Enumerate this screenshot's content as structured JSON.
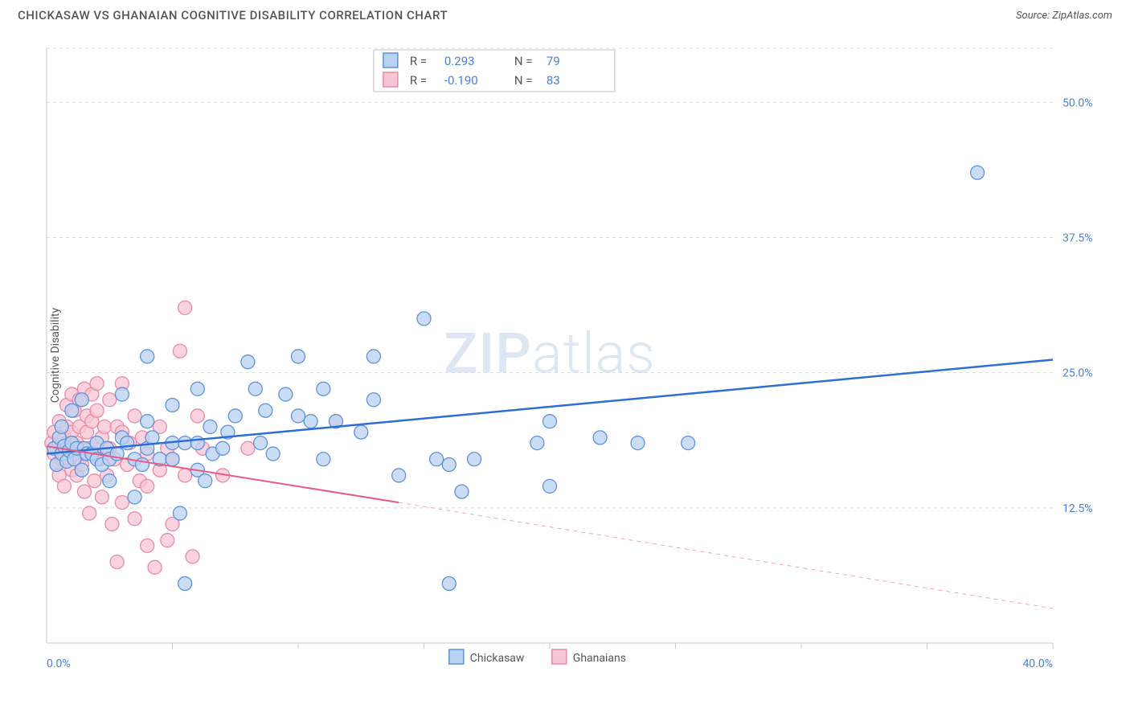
{
  "header": {
    "title": "CHICKASAW VS GHANAIAN COGNITIVE DISABILITY CORRELATION CHART",
    "source": "Source: ZipAtlas.com"
  },
  "chart": {
    "type": "scatter",
    "ylabel": "Cognitive Disability",
    "background_color": "#ffffff",
    "grid_color": "#d8d8d8",
    "axis_color": "#c8c8c8",
    "tick_label_color": "#4a80d6",
    "xlim": [
      0,
      40
    ],
    "ylim": [
      0,
      55
    ],
    "x_ticks": [
      5,
      10,
      15,
      20,
      25,
      30,
      35,
      40
    ],
    "x_corner_label": "0.0%",
    "x_end_label": "40.0%",
    "y_ticks": [
      {
        "v": 12.5,
        "label": "12.5%"
      },
      {
        "v": 25.0,
        "label": "25.0%"
      },
      {
        "v": 37.5,
        "label": "37.5%"
      },
      {
        "v": 50.0,
        "label": "50.0%"
      }
    ],
    "watermark": {
      "heavy": "ZIP",
      "light": "atlas",
      "color": "#cdd9ea"
    },
    "legend_top": {
      "rows": [
        {
          "swatch": "blue",
          "r_label": "R =",
          "r": "0.293",
          "n_label": "N =",
          "n": "79"
        },
        {
          "swatch": "pink",
          "r_label": "R =",
          "r": "-0.190",
          "n_label": "N =",
          "n": "83"
        }
      ],
      "r_color": "#4a80d6",
      "n_color": "#4a80d6",
      "label_color": "#555555",
      "box_stroke": "#bfbfbf"
    },
    "legend_bottom": {
      "items": [
        {
          "swatch": "blue",
          "label": "Chickasaw"
        },
        {
          "swatch": "pink",
          "label": "Ghanaians"
        }
      ]
    },
    "series": {
      "blue": {
        "color_fill": "#b9d2f2",
        "color_stroke": "#5e93d9",
        "marker_radius": 8.5,
        "trend": {
          "x1": 0,
          "y1": 17.5,
          "x2": 40,
          "y2": 26.2,
          "color": "#2d6fd2",
          "width": 2.5
        },
        "points": [
          [
            0.3,
            18.0
          ],
          [
            0.4,
            16.5
          ],
          [
            0.5,
            19.0
          ],
          [
            0.6,
            17.5
          ],
          [
            0.7,
            18.2
          ],
          [
            0.8,
            16.8
          ],
          [
            0.9,
            17.8
          ],
          [
            0.6,
            20.0
          ],
          [
            1.0,
            18.5
          ],
          [
            1.0,
            21.5
          ],
          [
            1.1,
            17.0
          ],
          [
            1.2,
            18.0
          ],
          [
            1.4,
            16.0
          ],
          [
            1.5,
            18.0
          ],
          [
            1.6,
            17.5
          ],
          [
            1.4,
            22.5
          ],
          [
            1.8,
            17.5
          ],
          [
            2.0,
            17.0
          ],
          [
            2.0,
            18.5
          ],
          [
            2.2,
            16.5
          ],
          [
            2.4,
            18.0
          ],
          [
            2.5,
            17.0
          ],
          [
            2.5,
            15.0
          ],
          [
            2.8,
            17.5
          ],
          [
            3.0,
            19.0
          ],
          [
            3.0,
            23.0
          ],
          [
            3.2,
            18.5
          ],
          [
            3.5,
            13.5
          ],
          [
            3.5,
            17.0
          ],
          [
            3.8,
            16.5
          ],
          [
            4.0,
            20.5
          ],
          [
            4.0,
            18.0
          ],
          [
            4.0,
            26.5
          ],
          [
            4.2,
            19.0
          ],
          [
            4.5,
            17.0
          ],
          [
            5.0,
            22.0
          ],
          [
            5.0,
            18.5
          ],
          [
            5.0,
            17.0
          ],
          [
            5.3,
            12.0
          ],
          [
            5.5,
            5.5
          ],
          [
            5.5,
            18.5
          ],
          [
            6.0,
            23.5
          ],
          [
            6.0,
            16.0
          ],
          [
            6.0,
            18.5
          ],
          [
            6.5,
            20.0
          ],
          [
            6.6,
            17.5
          ],
          [
            7.0,
            18.0
          ],
          [
            7.2,
            19.5
          ],
          [
            7.5,
            21.0
          ],
          [
            8.0,
            26.0
          ],
          [
            8.3,
            23.5
          ],
          [
            8.5,
            18.5
          ],
          [
            8.7,
            21.5
          ],
          [
            9.0,
            17.5
          ],
          [
            9.5,
            23.0
          ],
          [
            10.0,
            26.5
          ],
          [
            10.0,
            21.0
          ],
          [
            10.5,
            20.5
          ],
          [
            11.0,
            17.0
          ],
          [
            11.0,
            23.5
          ],
          [
            11.5,
            20.5
          ],
          [
            13.0,
            26.5
          ],
          [
            13.0,
            22.5
          ],
          [
            14.0,
            15.5
          ],
          [
            15.0,
            30.0
          ],
          [
            15.5,
            17.0
          ],
          [
            16.0,
            16.5
          ],
          [
            16.5,
            14.0
          ],
          [
            16.0,
            5.5
          ],
          [
            17.0,
            17.0
          ],
          [
            19.5,
            18.5
          ],
          [
            20.0,
            14.5
          ],
          [
            20.0,
            20.5
          ],
          [
            22.0,
            19.0
          ],
          [
            23.5,
            18.5
          ],
          [
            25.5,
            18.5
          ],
          [
            37.0,
            43.5
          ],
          [
            12.5,
            19.5
          ],
          [
            6.3,
            15.0
          ]
        ]
      },
      "pink": {
        "color_fill": "#f7c6d4",
        "color_stroke": "#e88aa8",
        "marker_radius": 8.5,
        "trend_solid": {
          "x1": 0,
          "y1": 18.2,
          "x2": 14,
          "y2": 13.0,
          "color": "#e75a87",
          "width": 2
        },
        "trend_dash": {
          "x1": 14,
          "y1": 13.0,
          "x2": 40,
          "y2": 3.2,
          "color": "#e9a7bc",
          "width": 1,
          "dash": "5 5"
        },
        "points": [
          [
            0.2,
            18.5
          ],
          [
            0.3,
            17.5
          ],
          [
            0.3,
            19.5
          ],
          [
            0.4,
            18.0
          ],
          [
            0.4,
            16.5
          ],
          [
            0.5,
            18.5
          ],
          [
            0.5,
            20.5
          ],
          [
            0.5,
            15.5
          ],
          [
            0.6,
            18.0
          ],
          [
            0.6,
            17.0
          ],
          [
            0.7,
            19.0
          ],
          [
            0.7,
            17.5
          ],
          [
            0.7,
            14.5
          ],
          [
            0.8,
            18.5
          ],
          [
            0.8,
            20.0
          ],
          [
            0.8,
            22.0
          ],
          [
            0.9,
            17.0
          ],
          [
            0.9,
            18.5
          ],
          [
            1.0,
            19.5
          ],
          [
            1.0,
            16.0
          ],
          [
            1.0,
            23.0
          ],
          [
            1.1,
            17.5
          ],
          [
            1.1,
            21.5
          ],
          [
            1.2,
            18.5
          ],
          [
            1.2,
            15.5
          ],
          [
            1.3,
            17.0
          ],
          [
            1.3,
            20.0
          ],
          [
            1.3,
            22.5
          ],
          [
            1.4,
            18.0
          ],
          [
            1.4,
            16.5
          ],
          [
            1.5,
            23.5
          ],
          [
            1.5,
            17.5
          ],
          [
            1.5,
            14.0
          ],
          [
            1.6,
            19.5
          ],
          [
            1.6,
            21.0
          ],
          [
            1.7,
            18.0
          ],
          [
            1.7,
            12.0
          ],
          [
            1.8,
            20.5
          ],
          [
            1.8,
            23.0
          ],
          [
            1.9,
            17.5
          ],
          [
            1.9,
            15.0
          ],
          [
            2.0,
            18.5
          ],
          [
            2.0,
            21.5
          ],
          [
            2.0,
            24.0
          ],
          [
            2.1,
            17.0
          ],
          [
            2.2,
            19.0
          ],
          [
            2.2,
            13.5
          ],
          [
            2.3,
            20.0
          ],
          [
            2.4,
            15.5
          ],
          [
            2.5,
            18.0
          ],
          [
            2.5,
            22.5
          ],
          [
            2.6,
            11.0
          ],
          [
            2.7,
            17.0
          ],
          [
            2.8,
            20.0
          ],
          [
            2.8,
            7.5
          ],
          [
            3.0,
            19.5
          ],
          [
            3.0,
            13.0
          ],
          [
            3.0,
            24.0
          ],
          [
            3.2,
            16.5
          ],
          [
            3.3,
            18.5
          ],
          [
            3.5,
            21.0
          ],
          [
            3.5,
            11.5
          ],
          [
            3.7,
            15.0
          ],
          [
            3.8,
            19.0
          ],
          [
            4.0,
            17.5
          ],
          [
            4.0,
            14.5
          ],
          [
            4.0,
            9.0
          ],
          [
            4.3,
            7.0
          ],
          [
            4.5,
            16.0
          ],
          [
            4.5,
            20.0
          ],
          [
            4.8,
            18.0
          ],
          [
            4.8,
            9.5
          ],
          [
            5.0,
            17.0
          ],
          [
            5.0,
            11.0
          ],
          [
            5.3,
            27.0
          ],
          [
            5.5,
            15.5
          ],
          [
            5.5,
            31.0
          ],
          [
            5.8,
            8.0
          ],
          [
            6.0,
            21.0
          ],
          [
            6.2,
            18.0
          ],
          [
            7.0,
            15.5
          ],
          [
            8.0,
            18.0
          ],
          [
            11.5,
            20.5
          ]
        ]
      }
    }
  }
}
